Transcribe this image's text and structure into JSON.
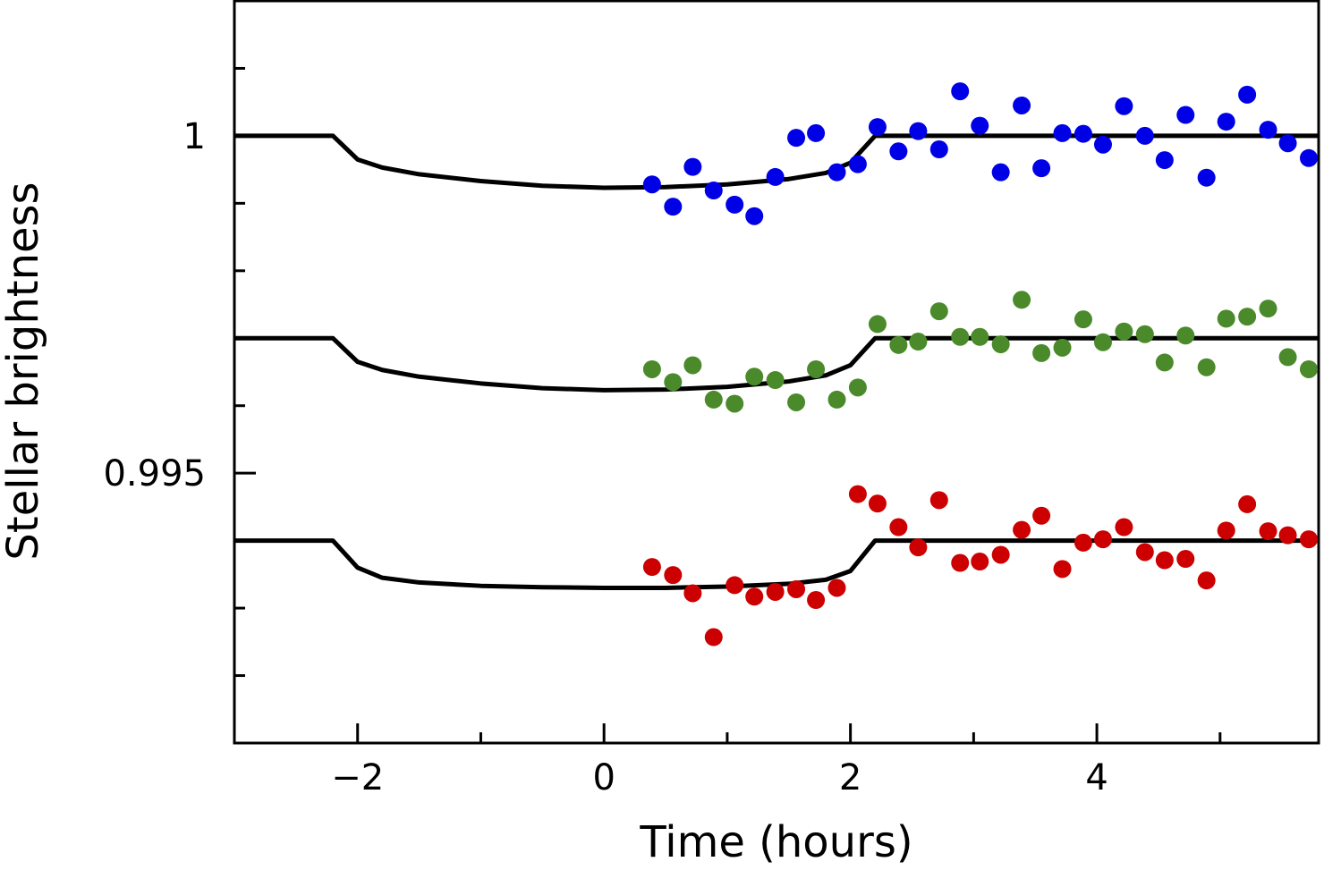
{
  "chart_data": {
    "type": "scatter",
    "x_label": "Time (hours)",
    "y_label": "Stellar brightness",
    "xlim": [
      -3,
      5.8
    ],
    "xticks": [
      {
        "value": -2,
        "label": "−2"
      },
      0,
      2,
      4
    ],
    "xminor_ticks": [
      -1,
      1,
      3,
      5
    ],
    "ylim": [
      0.991,
      1.002
    ],
    "yticks": [
      0.995,
      1
    ],
    "yminor_ticks": [
      0.992,
      0.993,
      0.994,
      0.996,
      0.997,
      0.998,
      0.999,
      1.001
    ],
    "x": [
      0.39,
      0.56,
      0.72,
      0.89,
      1.06,
      1.22,
      1.39,
      1.56,
      1.72,
      1.89,
      2.06,
      2.22,
      2.39,
      2.55,
      2.72,
      2.89,
      3.05,
      3.22,
      3.39,
      3.55,
      3.72,
      3.89,
      4.05,
      4.22,
      4.39,
      4.55,
      4.72,
      4.89,
      5.05,
      5.22,
      5.39,
      5.55,
      5.72
    ],
    "series": [
      {
        "color": "#0000e6",
        "values": [
          0.99928,
          0.99895,
          0.99954,
          0.99919,
          0.99898,
          0.99881,
          0.99939,
          0.99997,
          1.00004,
          0.99946,
          0.99958,
          1.00013,
          0.99977,
          1.00007,
          0.9998,
          1.00066,
          1.00015,
          0.99946,
          1.00045,
          0.99952,
          1.00004,
          1.00003,
          0.99987,
          1.00044,
          1.0,
          0.99964,
          1.00031,
          0.99938,
          1.00021,
          1.00061,
          1.00009,
          0.99989,
          0.99967
        ]
      },
      {
        "color": "#4a8a2a",
        "values": [
          0.99654,
          0.99635,
          0.9966,
          0.99609,
          0.99603,
          0.99643,
          0.99638,
          0.99605,
          0.99654,
          0.99609,
          0.99627,
          0.99721,
          0.9969,
          0.99695,
          0.9974,
          0.99702,
          0.99702,
          0.99691,
          0.99757,
          0.99678,
          0.99686,
          0.99728,
          0.99694,
          0.9971,
          0.99706,
          0.99664,
          0.99704,
          0.99657,
          0.99729,
          0.99732,
          0.99744,
          0.99672,
          0.99654
        ]
      },
      {
        "color": "#cc0000",
        "values": [
          0.99361,
          0.99349,
          0.99322,
          0.99257,
          0.99334,
          0.99317,
          0.99324,
          0.99328,
          0.99312,
          0.9933,
          0.99469,
          0.99455,
          0.9942,
          0.9939,
          0.9946,
          0.99367,
          0.99369,
          0.99379,
          0.99416,
          0.99437,
          0.99358,
          0.99397,
          0.99402,
          0.9942,
          0.99383,
          0.99371,
          0.99373,
          0.99341,
          0.99415,
          0.99454,
          0.99414,
          0.99408,
          0.99402
        ]
      }
    ],
    "model_x": [
      -3,
      -2.2,
      -2.0,
      -1.8,
      -1.5,
      -1,
      -0.5,
      0,
      0.5,
      1,
      1.5,
      1.8,
      2.0,
      2.2,
      5.8
    ],
    "models": [
      {
        "color": "#000000",
        "values": [
          1.0,
          1.0,
          0.99965,
          0.99953,
          0.99943,
          0.99933,
          0.99926,
          0.99923,
          0.99924,
          0.99928,
          0.99936,
          0.99945,
          0.9996,
          1.0,
          1.0
        ]
      },
      {
        "color": "#000000",
        "values": [
          0.997,
          0.997,
          0.99665,
          0.99653,
          0.99643,
          0.99633,
          0.99626,
          0.99623,
          0.99624,
          0.99628,
          0.99636,
          0.99645,
          0.9966,
          0.997,
          0.997
        ]
      },
      {
        "color": "#000000",
        "values": [
          0.994,
          0.994,
          0.9936,
          0.99345,
          0.99338,
          0.99333,
          0.99331,
          0.9933,
          0.9933,
          0.99332,
          0.99336,
          0.99342,
          0.99355,
          0.994,
          0.994
        ]
      }
    ]
  }
}
